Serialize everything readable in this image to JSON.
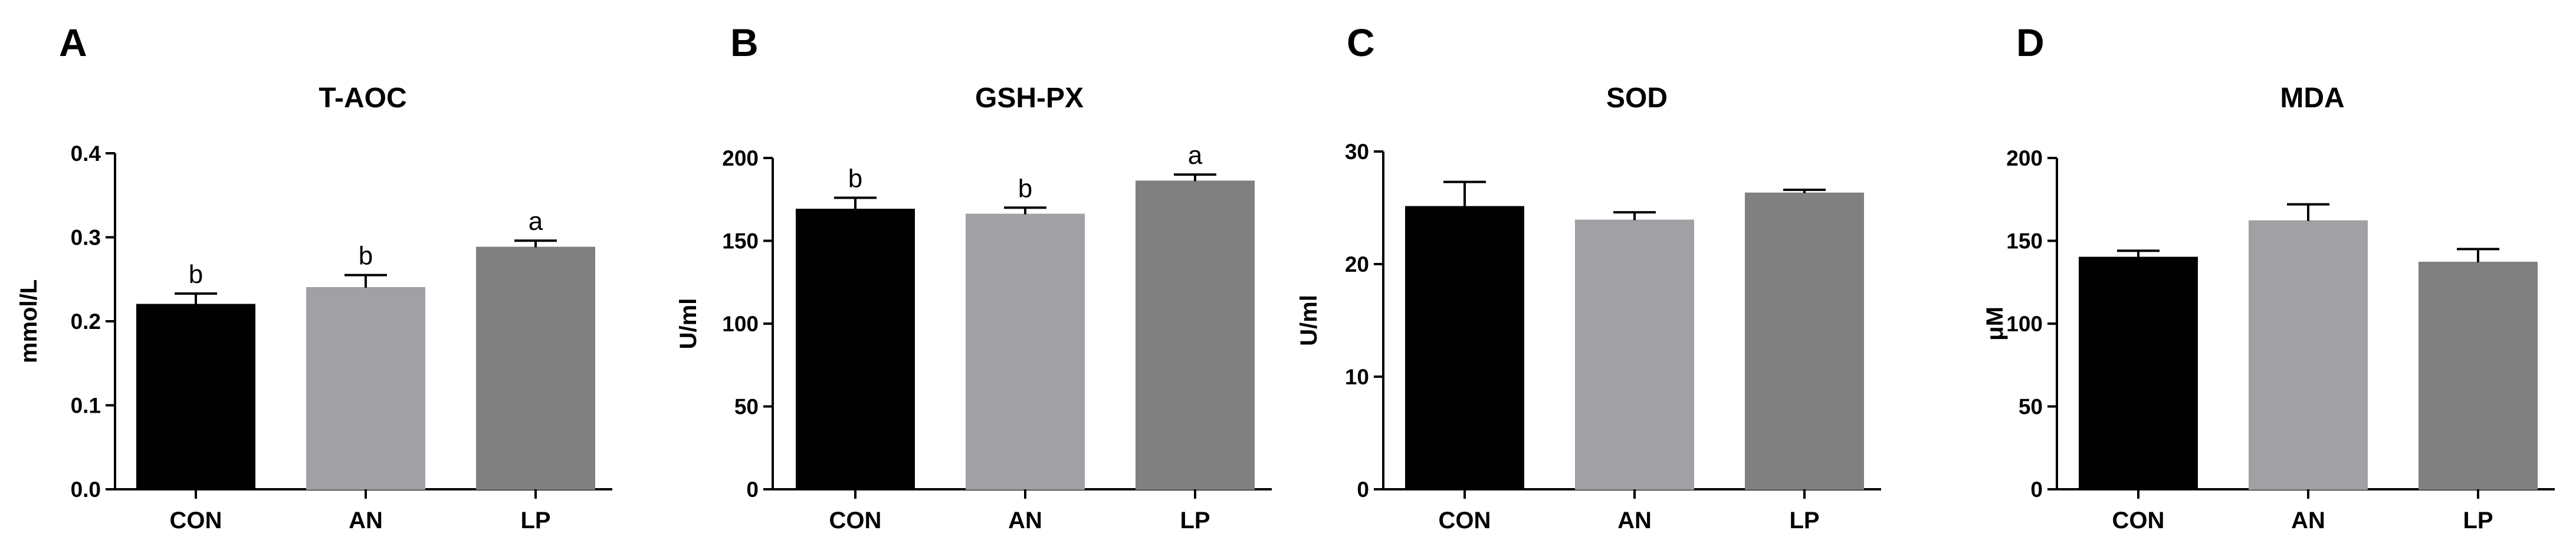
{
  "charts": [
    {
      "panel": "A",
      "chart_data": {
        "type": "bar",
        "title": "T-AOC",
        "xlabel": "",
        "ylabel": "mmol/L",
        "ylim": [
          0,
          0.4
        ],
        "yticks": [
          "0.0",
          "0.1",
          "0.2",
          "0.3",
          "0.4"
        ],
        "categories": [
          "CON",
          "AN",
          "LP"
        ],
        "values": [
          0.22,
          0.24,
          0.288
        ],
        "errors": [
          0.013,
          0.015,
          0.008
        ],
        "significance": [
          "b",
          "b",
          "a"
        ],
        "colors": [
          "#000000",
          "#a0a0a5",
          "#808080"
        ],
        "grid": false
      }
    },
    {
      "panel": "B",
      "chart_data": {
        "type": "bar",
        "title": "GSH-PX",
        "xlabel": "",
        "ylabel": "U/ml",
        "ylim": [
          0,
          200
        ],
        "yticks": [
          "0",
          "50",
          "100",
          "150",
          "200"
        ],
        "categories": [
          "CON",
          "AN",
          "LP"
        ],
        "values": [
          169,
          166,
          186
        ],
        "errors": [
          7,
          4,
          4
        ],
        "significance": [
          "b",
          "b",
          "a"
        ],
        "colors": [
          "#000000",
          "#a0a0a5",
          "#808080"
        ],
        "grid": false
      }
    },
    {
      "panel": "C",
      "chart_data": {
        "type": "bar",
        "title": "SOD",
        "xlabel": "",
        "ylabel": "U/ml",
        "ylim": [
          0,
          30
        ],
        "yticks": [
          "0",
          "10",
          "20",
          "30"
        ],
        "categories": [
          "CON",
          "AN",
          "LP"
        ],
        "values": [
          25.1,
          23.9,
          26.3
        ],
        "errors": [
          2.2,
          0.7,
          0.3
        ],
        "significance": [],
        "colors": [
          "#000000",
          "#a0a0a5",
          "#808080"
        ],
        "grid": false
      }
    },
    {
      "panel": "D",
      "chart_data": {
        "type": "bar",
        "title": "MDA",
        "xlabel": "",
        "ylabel": "μM",
        "ylim": [
          0,
          200
        ],
        "yticks": [
          "0",
          "50",
          "100",
          "150",
          "200"
        ],
        "categories": [
          "CON",
          "AN",
          "LP"
        ],
        "values": [
          140,
          162,
          137
        ],
        "errors": [
          4,
          10,
          8
        ],
        "significance": [],
        "colors": [
          "#000000",
          "#a0a0a5",
          "#808080"
        ],
        "grid": false
      }
    }
  ]
}
